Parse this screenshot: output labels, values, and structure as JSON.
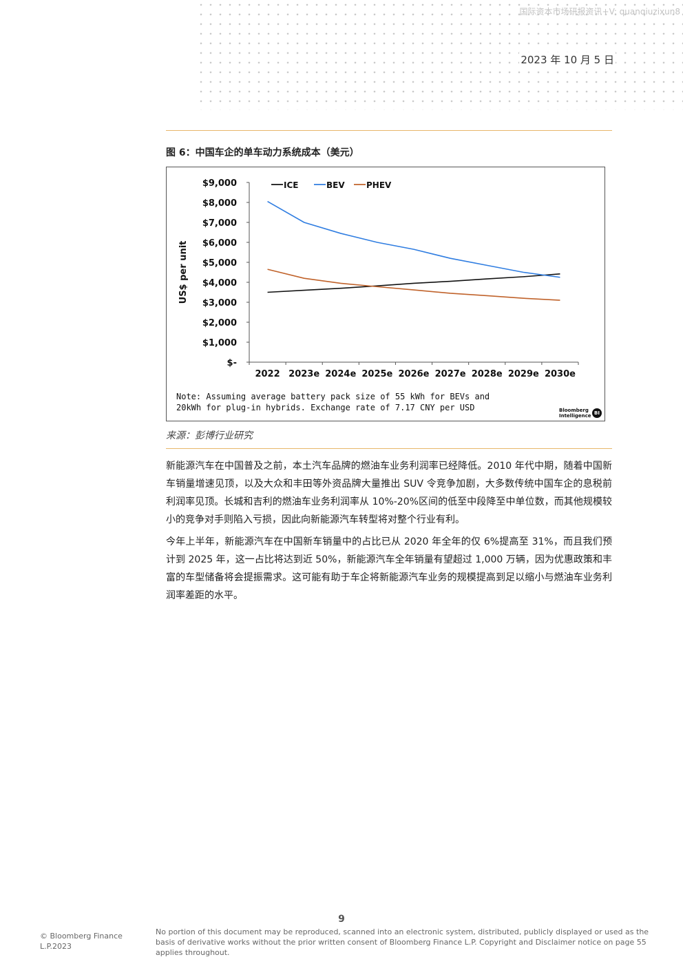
{
  "header": {
    "watermark": "国际资本市场研报资讯+V: quanqiuzixun8",
    "date": "2023 年 10 月 5 日"
  },
  "figure": {
    "title": "图 6：中国车企的单车动力系统成本（美元）",
    "note_line1": "Note: Assuming average battery pack size of 55 kWh for BEVs and",
    "note_line2": "20kWh for plug-in hybrids. Exchange rate of 7.17 CNY per USD",
    "logo_line1": "Bloomberg",
    "logo_line2": "Intelligence",
    "logo_badge": "BI",
    "source": "来源：彭博行业研究"
  },
  "chart_data": {
    "type": "line",
    "title": "",
    "xlabel": "",
    "ylabel": "US$ per unit",
    "categories": [
      "2022",
      "2023e",
      "2024e",
      "2025e",
      "2026e",
      "2027e",
      "2028e",
      "2029e",
      "2030e"
    ],
    "ylim": [
      0,
      9000
    ],
    "yticks": [
      0,
      1000,
      2000,
      3000,
      4000,
      5000,
      6000,
      7000,
      8000,
      9000
    ],
    "ytick_labels": [
      "$-",
      "$1,000",
      "$2,000",
      "$3,000",
      "$4,000",
      "$5,000",
      "$6,000",
      "$7,000",
      "$8,000",
      "$9,000"
    ],
    "grid": false,
    "legend_position": "top",
    "series": [
      {
        "name": "ICE",
        "color": "#111111",
        "values": [
          3500,
          3600,
          3700,
          3820,
          3950,
          4050,
          4170,
          4280,
          4420
        ]
      },
      {
        "name": "BEV",
        "color": "#2f7de1",
        "values": [
          8050,
          7000,
          6450,
          6000,
          5650,
          5200,
          4850,
          4500,
          4250
        ]
      },
      {
        "name": "PHEV",
        "color": "#c0622a",
        "values": [
          4650,
          4200,
          3950,
          3780,
          3620,
          3450,
          3330,
          3200,
          3100
        ]
      }
    ]
  },
  "body": {
    "para1": "新能源汽车在中国普及之前，本土汽车品牌的燃油车业务利润率已经降低。2010 年代中期，随着中国新车销量增速见顶，以及大众和丰田等外资品牌大量推出 SUV 令竞争加剧，大多数传统中国车企的息税前利润率见顶。长城和吉利的燃油车业务利润率从 10%-20%区间的低至中段降至中单位数，而其他规模较小的竞争对手则陷入亏损，因此向新能源汽车转型将对整个行业有利。",
    "para2": "今年上半年，新能源汽车在中国新车销量中的占比已从 2020 年全年的仅 6%提高至 31%，而且我们预计到 2025 年，这一占比将达到近 50%，新能源汽车全年销量有望超过 1,000 万辆，因为优惠政策和丰富的车型储备将会提振需求。这可能有助于车企将新能源汽车业务的规模提高到足以缩小与燃油车业务利润率差距的水平。"
  },
  "footer": {
    "page_number": "9",
    "copyright": "© Bloomberg Finance L.P.2023",
    "disclaimer": "No portion of this document may be reproduced, scanned into an electronic system, distributed, publicly displayed or used as the basis of derivative works without the prior written consent of Bloomberg Finance L.P. Copyright and Disclaimer notice on page 55 applies throughout."
  }
}
